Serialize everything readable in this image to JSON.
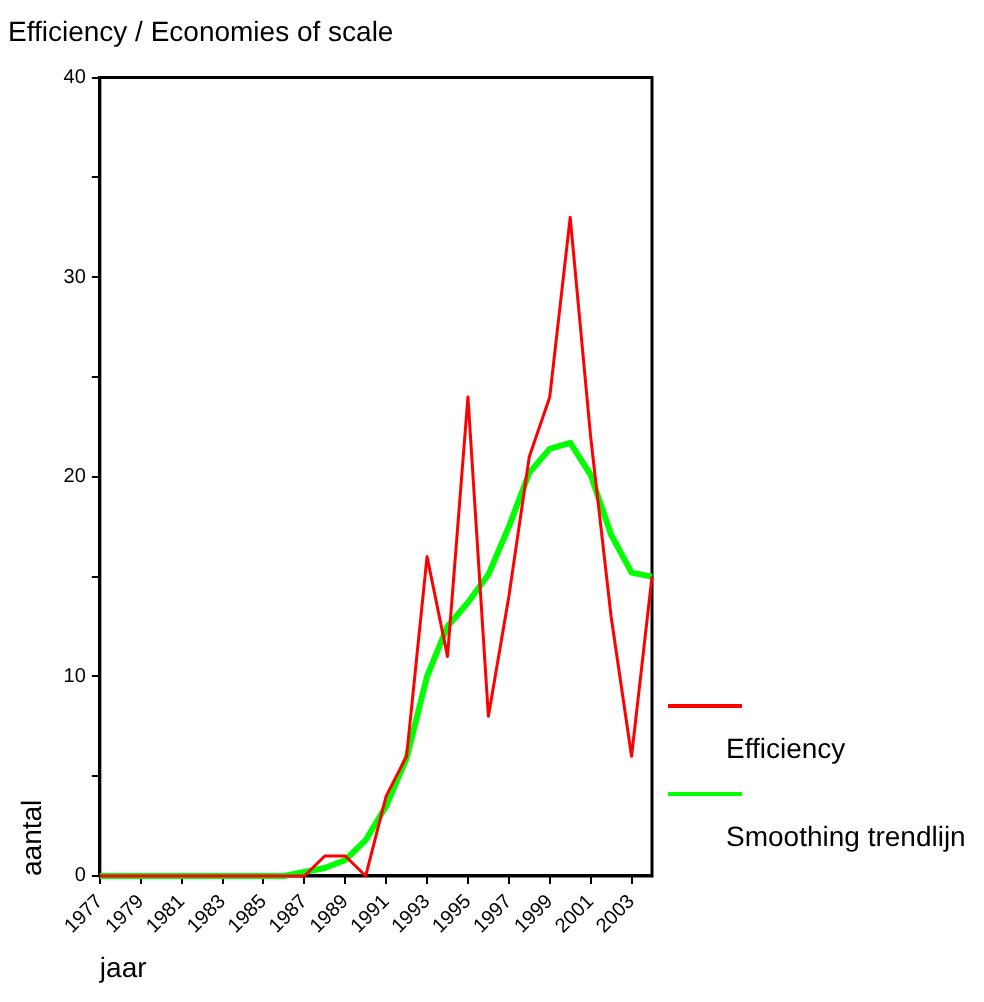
{
  "chart_data": {
    "type": "line",
    "title": "Efficiency / Economies of scale",
    "xlabel": "jaar",
    "ylabel": "aantal",
    "x": [
      1977,
      1978,
      1979,
      1980,
      1981,
      1982,
      1983,
      1984,
      1985,
      1986,
      1987,
      1988,
      1989,
      1990,
      1991,
      1992,
      1993,
      1994,
      1995,
      1996,
      1997,
      1998,
      1999,
      2000,
      2001,
      2002,
      2003,
      2004
    ],
    "series": [
      {
        "name": "Efficiency",
        "color": "#ff0000",
        "values": [
          0,
          0,
          0,
          0,
          0,
          0,
          0,
          0,
          0,
          0,
          0,
          1,
          1,
          0,
          4,
          6,
          16,
          11,
          24,
          8,
          14,
          21,
          24,
          33,
          22,
          13,
          6,
          15
        ]
      },
      {
        "name": "Smoothing trendlijn",
        "color": "#00ff00",
        "values": [
          0,
          0,
          0,
          0,
          0,
          0,
          0,
          0,
          0,
          0,
          0.2,
          0.4,
          0.8,
          1.8,
          3.5,
          5.9,
          10,
          12.5,
          13.7,
          15.1,
          17.5,
          20.2,
          21.4,
          21.7,
          20.1,
          17.1,
          15.2,
          15
        ]
      }
    ],
    "xlim": [
      1977,
      2004
    ],
    "xticks": [
      1977,
      1979,
      1981,
      1983,
      1985,
      1987,
      1989,
      1991,
      1993,
      1995,
      1997,
      1999,
      2001,
      2003
    ],
    "ylim": [
      0,
      40
    ],
    "yticks": [
      0,
      {
        "value": 5,
        "label": null
      },
      10,
      {
        "value": 15,
        "label": null
      },
      20,
      {
        "value": 25,
        "label": null
      },
      30,
      {
        "value": 35,
        "label": null
      },
      40
    ],
    "grid": false,
    "legend": "right",
    "marker": "none",
    "line_style": "solid"
  }
}
